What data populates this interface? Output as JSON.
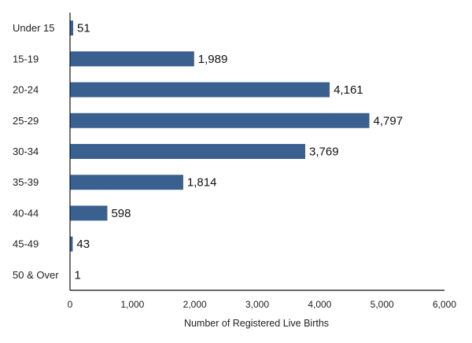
{
  "chart_data": {
    "type": "bar",
    "orientation": "horizontal",
    "categories": [
      "Under 15",
      "15-19",
      "20-24",
      "25-29",
      "30-34",
      "35-39",
      "40-44",
      "45-49",
      "50 & Over"
    ],
    "values": [
      51,
      1989,
      4161,
      4797,
      3769,
      1814,
      598,
      43,
      1
    ],
    "value_labels": [
      "51",
      "1,989",
      "4,161",
      "4,797",
      "3,769",
      "1,814",
      "598",
      "43",
      "1"
    ],
    "title": "",
    "xlabel": "Number of Registered Live Births",
    "ylabel": "",
    "xlim": [
      0,
      6000
    ],
    "xticks": [
      0,
      1000,
      2000,
      3000,
      4000,
      5000,
      6000
    ],
    "xtick_labels": [
      "0",
      "1,000",
      "2,000",
      "3,000",
      "4,000",
      "5,000",
      "6,000"
    ],
    "grid": false,
    "legend": "none",
    "bar_color": "#3a6090"
  }
}
